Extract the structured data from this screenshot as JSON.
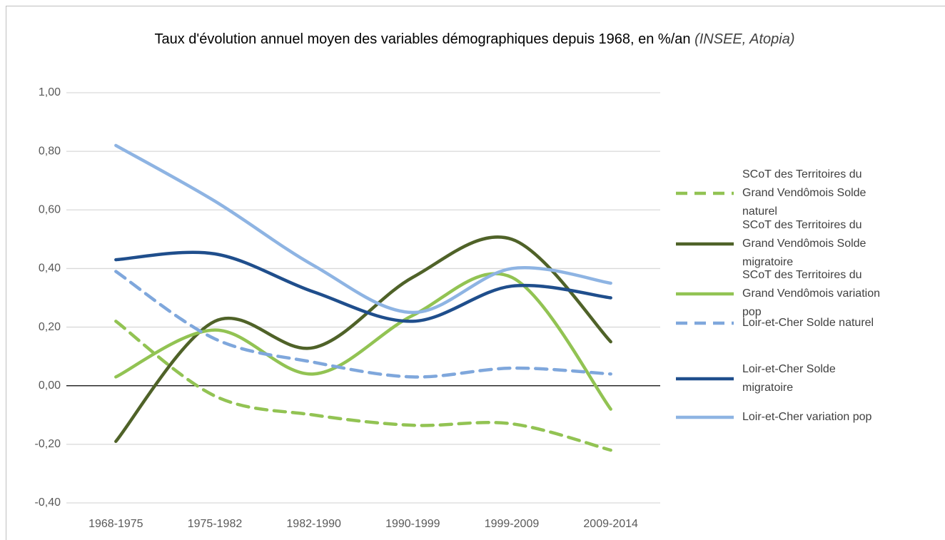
{
  "chart_data": {
    "type": "line",
    "title": "Taux d'évolution annuel moyen des variables démographiques depuis 1968, en %/an",
    "source": "(INSEE, Atopia)",
    "categories": [
      "1968-1975",
      "1975-1982",
      "1982-1990",
      "1990-1999",
      "1999-2009",
      "2009-2014"
    ],
    "series": [
      {
        "name": "SCoT des Territoires du Grand Vendômois Solde naturel",
        "color": "#92c353",
        "dashed": true,
        "values": [
          0.22,
          -0.035,
          -0.1,
          -0.135,
          -0.13,
          -0.22
        ]
      },
      {
        "name": "SCoT des Territoires du Grand Vendômois Solde migratoire",
        "color": "#4f6228",
        "dashed": false,
        "values": [
          -0.19,
          0.22,
          0.13,
          0.37,
          0.5,
          0.15
        ]
      },
      {
        "name": "SCoT des Territoires du Grand Vendômois variation pop",
        "color": "#92c353",
        "dashed": false,
        "values": [
          0.03,
          0.19,
          0.04,
          0.24,
          0.37,
          -0.08
        ]
      },
      {
        "name": "Loir-et-Cher Solde naturel",
        "color": "#7fa7dc",
        "dashed": true,
        "values": [
          0.39,
          0.16,
          0.08,
          0.03,
          0.06,
          0.04
        ]
      },
      {
        "name": "Loir-et-Cher Solde migratoire",
        "color": "#1f4e8c",
        "dashed": false,
        "values": [
          0.43,
          0.45,
          0.32,
          0.22,
          0.34,
          0.3
        ]
      },
      {
        "name": "Loir-et-Cher variation pop",
        "color": "#8eb4e3",
        "dashed": false,
        "values": [
          0.82,
          0.63,
          0.41,
          0.25,
          0.4,
          0.35
        ]
      }
    ],
    "ylim": [
      -0.4,
      1.0
    ],
    "yticks": [
      {
        "value": -0.4,
        "label": "-0,40"
      },
      {
        "value": -0.2,
        "label": "-0,20"
      },
      {
        "value": 0,
        "label": "0,00"
      },
      {
        "value": 0.2,
        "label": "0,20"
      },
      {
        "value": 0.4,
        "label": "0,40"
      },
      {
        "value": 0.6,
        "label": "0,60"
      },
      {
        "value": 0.8,
        "label": "0,80"
      },
      {
        "value": 1.0,
        "label": "1,00"
      }
    ],
    "grid": true,
    "legend": "right"
  }
}
